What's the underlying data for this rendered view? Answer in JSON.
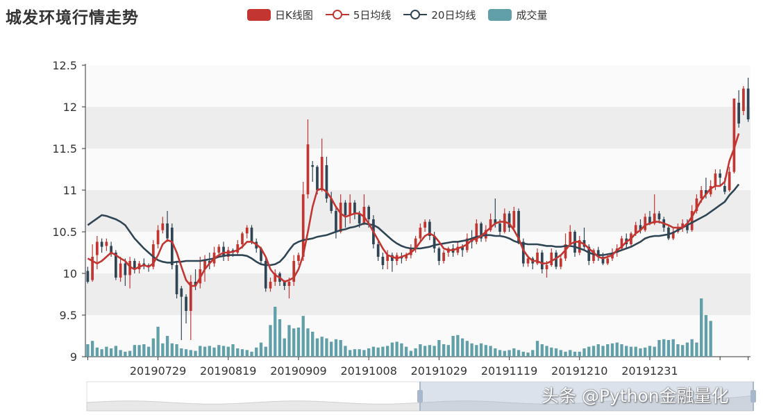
{
  "chart_data": {
    "type": "candlestick",
    "title": "城发环境行情走势",
    "legend": {
      "position": "top",
      "entries": [
        {
          "name": "日K线图",
          "color": "#c23531"
        },
        {
          "name": "5日均线",
          "color": "#c23531"
        },
        {
          "name": "20日均线",
          "color": "#2f4554"
        },
        {
          "name": "成交量",
          "color": "#61a0a8"
        }
      ]
    },
    "x_ticks": [
      "20190729",
      "20190819",
      "20190909",
      "20191008",
      "20191029",
      "20191119",
      "20191210",
      "20191231"
    ],
    "y_ticks": [
      "9",
      "9.5",
      "10",
      "10.5",
      "11",
      "11.5",
      "12",
      "12.5"
    ],
    "ylim": [
      9,
      12.5
    ],
    "split_area": true,
    "datazoom": {
      "start": 50,
      "end": 100
    },
    "candle_colors": {
      "up": "#c23531",
      "down": "#2f4554"
    },
    "ohlc": [
      [
        10.03,
        9.9,
        9.88,
        10.08
      ],
      [
        9.92,
        10.2,
        9.9,
        10.35
      ],
      [
        10.22,
        10.38,
        10.05,
        10.45
      ],
      [
        10.38,
        10.32,
        10.25,
        10.42
      ],
      [
        10.33,
        10.38,
        10.27,
        10.42
      ],
      [
        10.33,
        10.25,
        10.2,
        10.38
      ],
      [
        10.25,
        9.95,
        9.92,
        10.28
      ],
      [
        9.95,
        10.12,
        9.9,
        10.2
      ],
      [
        10.12,
        9.98,
        9.85,
        10.18
      ],
      [
        9.98,
        10.15,
        9.82,
        10.2
      ],
      [
        10.15,
        10.05,
        10.0,
        10.18
      ],
      [
        10.05,
        10.12,
        10.0,
        10.15
      ],
      [
        10.12,
        10.1,
        10.05,
        10.18
      ],
      [
        10.1,
        10.08,
        10.02,
        10.12
      ],
      [
        10.08,
        10.35,
        10.05,
        10.4
      ],
      [
        10.35,
        10.52,
        10.3,
        10.58
      ],
      [
        10.52,
        10.6,
        10.48,
        10.68
      ],
      [
        10.6,
        10.42,
        10.38,
        10.75
      ],
      [
        10.55,
        10.1,
        10.05,
        10.6
      ],
      [
        10.1,
        9.75,
        9.7,
        10.15
      ],
      [
        9.82,
        9.72,
        9.2,
        9.85
      ],
      [
        9.72,
        9.55,
        9.4,
        9.75
      ],
      [
        9.55,
        9.9,
        9.2,
        9.98
      ],
      [
        9.9,
        9.85,
        9.8,
        10.05
      ],
      [
        9.88,
        10.05,
        9.82,
        10.2
      ],
      [
        10.05,
        10.15,
        9.9,
        10.22
      ],
      [
        10.15,
        10.12,
        10.05,
        10.25
      ],
      [
        10.12,
        10.25,
        10.08,
        10.32
      ],
      [
        10.25,
        10.32,
        10.2,
        10.35
      ],
      [
        10.32,
        10.2,
        10.15,
        10.38
      ],
      [
        10.2,
        10.28,
        10.15,
        10.32
      ],
      [
        10.28,
        10.25,
        10.2,
        10.3
      ],
      [
        10.25,
        10.35,
        10.22,
        10.4
      ],
      [
        10.35,
        10.48,
        10.3,
        10.5
      ],
      [
        10.48,
        10.55,
        10.42,
        10.58
      ],
      [
        10.55,
        10.38,
        10.35,
        10.58
      ],
      [
        10.38,
        10.3,
        10.25,
        10.42
      ],
      [
        10.3,
        10.15,
        10.1,
        10.32
      ],
      [
        10.15,
        9.82,
        9.78,
        10.18
      ],
      [
        9.82,
        9.9,
        9.78,
        9.95
      ],
      [
        9.9,
        10.0,
        9.85,
        10.05
      ],
      [
        10.0,
        9.9,
        9.85,
        10.02
      ],
      [
        9.9,
        9.85,
        9.8,
        9.92
      ],
      [
        9.85,
        9.9,
        9.7,
        9.95
      ],
      [
        9.9,
        10.15,
        9.85,
        10.22
      ],
      [
        10.15,
        10.22,
        10.1,
        10.25
      ],
      [
        10.2,
        10.95,
        10.15,
        11.1
      ],
      [
        10.95,
        11.55,
        10.9,
        11.85
      ],
      [
        11.3,
        11.28,
        11.1,
        11.35
      ],
      [
        11.28,
        11.0,
        10.95,
        11.3
      ],
      [
        11.0,
        11.4,
        10.98,
        11.62
      ],
      [
        11.3,
        10.9,
        10.85,
        11.4
      ],
      [
        10.9,
        10.75,
        10.72,
        10.98
      ],
      [
        10.75,
        10.5,
        10.42,
        10.8
      ],
      [
        10.5,
        10.85,
        10.48,
        10.95
      ],
      [
        10.85,
        10.7,
        10.55,
        10.88
      ],
      [
        10.7,
        10.85,
        10.6,
        10.95
      ],
      [
        10.85,
        10.72,
        10.65,
        10.88
      ],
      [
        10.72,
        10.6,
        10.55,
        10.75
      ],
      [
        10.6,
        10.8,
        10.58,
        10.95
      ],
      [
        10.8,
        10.65,
        10.55,
        10.82
      ],
      [
        10.65,
        10.35,
        10.3,
        10.7
      ],
      [
        10.35,
        10.2,
        10.15,
        10.4
      ],
      [
        10.2,
        10.1,
        10.05,
        10.25
      ],
      [
        10.15,
        10.22,
        10.05,
        10.28
      ],
      [
        10.22,
        10.15,
        10.02,
        10.25
      ],
      [
        10.15,
        10.22,
        10.1,
        10.25
      ],
      [
        10.2,
        10.18,
        10.12,
        10.25
      ],
      [
        10.18,
        10.22,
        10.15,
        10.25
      ],
      [
        10.22,
        10.3,
        10.18,
        10.35
      ],
      [
        10.3,
        10.42,
        10.25,
        10.45
      ],
      [
        10.42,
        10.55,
        10.38,
        10.6
      ],
      [
        10.55,
        10.62,
        10.5,
        10.65
      ],
      [
        10.62,
        10.45,
        10.4,
        10.65
      ],
      [
        10.45,
        10.3,
        10.25,
        10.5
      ],
      [
        10.3,
        10.15,
        10.1,
        10.32
      ],
      [
        10.15,
        10.25,
        10.12,
        10.28
      ],
      [
        10.25,
        10.3,
        10.2,
        10.32
      ],
      [
        10.3,
        10.25,
        10.2,
        10.35
      ],
      [
        10.25,
        10.32,
        10.22,
        10.38
      ],
      [
        10.32,
        10.28,
        10.2,
        10.35
      ],
      [
        10.28,
        10.42,
        10.25,
        10.48
      ],
      [
        10.42,
        10.38,
        10.3,
        10.52
      ],
      [
        10.38,
        10.6,
        10.35,
        10.65
      ],
      [
        10.6,
        10.42,
        10.38,
        10.62
      ],
      [
        10.42,
        10.52,
        10.38,
        10.58
      ],
      [
        10.52,
        10.65,
        10.5,
        10.72
      ],
      [
        10.65,
        10.6,
        10.55,
        10.9
      ],
      [
        10.6,
        10.5,
        10.45,
        10.65
      ],
      [
        10.5,
        10.72,
        10.48,
        10.78
      ],
      [
        10.72,
        10.55,
        10.5,
        10.75
      ],
      [
        10.55,
        10.75,
        10.52,
        10.8
      ],
      [
        10.75,
        10.38,
        10.35,
        10.78
      ],
      [
        10.38,
        10.12,
        10.08,
        10.42
      ],
      [
        10.12,
        10.18,
        10.08,
        10.22
      ],
      [
        10.18,
        10.12,
        10.05,
        10.2
      ],
      [
        10.12,
        10.25,
        10.1,
        10.3
      ],
      [
        10.25,
        10.05,
        10.0,
        10.28
      ],
      [
        10.05,
        10.1,
        9.95,
        10.15
      ],
      [
        10.1,
        10.25,
        10.08,
        10.3
      ],
      [
        10.25,
        10.08,
        10.05,
        10.28
      ],
      [
        10.08,
        10.18,
        10.05,
        10.22
      ],
      [
        10.18,
        10.35,
        10.15,
        10.48
      ],
      [
        10.35,
        10.5,
        10.32,
        10.58
      ],
      [
        10.5,
        10.25,
        10.2,
        10.52
      ],
      [
        10.25,
        10.4,
        10.22,
        10.45
      ],
      [
        10.4,
        10.32,
        10.28,
        10.55
      ],
      [
        10.32,
        10.15,
        10.1,
        10.35
      ],
      [
        10.15,
        10.28,
        10.12,
        10.3
      ],
      [
        10.28,
        10.2,
        10.15,
        10.32
      ],
      [
        10.2,
        10.12,
        10.1,
        10.25
      ],
      [
        10.12,
        10.18,
        10.1,
        10.22
      ],
      [
        10.18,
        10.25,
        10.15,
        10.3
      ],
      [
        10.25,
        10.3,
        10.2,
        10.35
      ],
      [
        10.3,
        10.42,
        10.28,
        10.45
      ],
      [
        10.42,
        10.35,
        10.3,
        10.48
      ],
      [
        10.35,
        10.48,
        10.32,
        10.5
      ],
      [
        10.48,
        10.58,
        10.45,
        10.62
      ],
      [
        10.58,
        10.52,
        10.48,
        10.65
      ],
      [
        10.52,
        10.68,
        10.5,
        10.72
      ],
      [
        10.68,
        10.6,
        10.58,
        10.75
      ],
      [
        10.6,
        10.72,
        10.58,
        10.95
      ],
      [
        10.72,
        10.65,
        10.6,
        10.75
      ],
      [
        10.65,
        10.55,
        10.5,
        10.68
      ],
      [
        10.55,
        10.42,
        10.4,
        10.58
      ],
      [
        10.42,
        10.5,
        10.4,
        10.55
      ],
      [
        10.5,
        10.55,
        10.48,
        10.6
      ],
      [
        10.55,
        10.6,
        10.5,
        10.65
      ],
      [
        10.6,
        10.52,
        10.48,
        10.65
      ],
      [
        10.52,
        10.75,
        10.5,
        10.82
      ],
      [
        10.75,
        10.9,
        10.72,
        10.95
      ],
      [
        10.9,
        11.0,
        10.85,
        11.05
      ],
      [
        11.0,
        10.95,
        10.9,
        11.15
      ],
      [
        10.95,
        11.05,
        10.92,
        11.12
      ],
      [
        11.05,
        11.2,
        11.0,
        11.25
      ],
      [
        11.2,
        11.15,
        11.05,
        11.25
      ],
      [
        11.05,
        10.98,
        10.95,
        11.15
      ],
      [
        11.0,
        11.22,
        10.98,
        11.28
      ],
      [
        11.22,
        12.1,
        11.2,
        12.1
      ],
      [
        12.05,
        11.8,
        11.75,
        12.2
      ],
      [
        11.95,
        12.22,
        11.9,
        12.25
      ],
      [
        12.22,
        11.85,
        11.82,
        12.35
      ]
    ],
    "ma5": [
      10.18,
      10.15,
      10.12,
      10.15,
      10.2,
      10.25,
      10.22,
      10.18,
      10.15,
      10.08,
      10.05,
      10.08,
      10.1,
      10.08,
      10.12,
      10.22,
      10.35,
      10.4,
      10.38,
      10.25,
      10.08,
      9.92,
      9.85,
      9.85,
      9.95,
      10.05,
      10.12,
      10.18,
      10.22,
      10.25,
      10.25,
      10.26,
      10.28,
      10.32,
      10.38,
      10.38,
      10.35,
      10.3,
      10.2,
      10.05,
      9.98,
      9.95,
      9.9,
      9.92,
      9.95,
      10.05,
      10.22,
      10.5,
      10.8,
      11.0,
      11.02,
      10.98,
      10.9,
      10.8,
      10.72,
      10.68,
      10.7,
      10.72,
      10.72,
      10.68,
      10.6,
      10.5,
      10.4,
      10.3,
      10.22,
      10.2,
      10.18,
      10.2,
      10.22,
      10.25,
      10.3,
      10.38,
      10.45,
      10.48,
      10.45,
      10.38,
      10.3,
      10.28,
      10.28,
      10.3,
      10.32,
      10.35,
      10.4,
      10.42,
      10.45,
      10.5,
      10.55,
      10.6,
      10.62,
      10.62,
      10.6,
      10.52,
      10.42,
      10.28,
      10.2,
      10.15,
      10.15,
      10.12,
      10.12,
      10.15,
      10.18,
      10.22,
      10.28,
      10.35,
      10.38,
      10.38,
      10.35,
      10.3,
      10.25,
      10.2,
      10.18,
      10.2,
      10.22,
      10.28,
      10.32,
      10.38,
      10.42,
      10.48,
      10.52,
      10.58,
      10.6,
      10.62,
      10.62,
      10.6,
      10.58,
      10.55,
      10.55,
      10.55,
      10.6,
      10.68,
      10.78,
      10.88,
      10.95,
      11.02,
      11.05,
      11.05,
      11.1,
      11.35,
      11.5,
      11.68
    ],
    "ma20": [
      10.58,
      10.62,
      10.66,
      10.7,
      10.69,
      10.67,
      10.65,
      10.62,
      10.58,
      10.5,
      10.42,
      10.36,
      10.3,
      10.25,
      10.2,
      10.16,
      10.14,
      10.13,
      10.13,
      10.14,
      10.14,
      10.15,
      10.15,
      10.15,
      10.15,
      10.16,
      10.17,
      10.18,
      10.2,
      10.21,
      10.22,
      10.22,
      10.22,
      10.22,
      10.21,
      10.18,
      10.14,
      10.11,
      10.1,
      10.1,
      10.11,
      10.14,
      10.2,
      10.28,
      10.35,
      10.38,
      10.4,
      10.41,
      10.42,
      10.44,
      10.45,
      10.46,
      10.48,
      10.5,
      10.52,
      10.53,
      10.55,
      10.56,
      10.58,
      10.6,
      10.59,
      10.58,
      10.55,
      10.5,
      10.45,
      10.4,
      10.36,
      10.33,
      10.31,
      10.3,
      10.3,
      10.3,
      10.31,
      10.32,
      10.34,
      10.35,
      10.36,
      10.37,
      10.38,
      10.38,
      10.39,
      10.4,
      10.42,
      10.44,
      10.45,
      10.46,
      10.46,
      10.45,
      10.45,
      10.44,
      10.42,
      10.39,
      10.37,
      10.36,
      10.35,
      10.35,
      10.35,
      10.34,
      10.33,
      10.33,
      10.32,
      10.32,
      10.33,
      10.33,
      10.32,
      10.3,
      10.28,
      10.25,
      10.23,
      10.22,
      10.22,
      10.23,
      10.24,
      10.26,
      10.28,
      10.3,
      10.32,
      10.35,
      10.38,
      10.42,
      10.44,
      10.45,
      10.45,
      10.46,
      10.47,
      10.49,
      10.52,
      10.55,
      10.58,
      10.61,
      10.64,
      10.67,
      10.7,
      10.74,
      10.78,
      10.82,
      10.86,
      10.94,
      11.0,
      11.07
    ],
    "volume": [
      9.15,
      9.19,
      9.11,
      9.09,
      9.12,
      9.1,
      9.13,
      9.08,
      9.06,
      9.07,
      9.14,
      9.14,
      9.15,
      9.12,
      9.22,
      9.36,
      9.16,
      9.25,
      9.16,
      9.15,
      9.1,
      9.09,
      9.08,
      9.07,
      9.13,
      9.12,
      9.13,
      9.11,
      9.14,
      9.13,
      9.12,
      9.15,
      9.1,
      9.09,
      9.08,
      9.06,
      9.11,
      9.17,
      9.12,
      9.38,
      9.6,
      9.45,
      9.22,
      9.38,
      9.34,
      9.35,
      9.49,
      9.34,
      9.3,
      9.22,
      9.24,
      9.22,
      9.18,
      9.21,
      9.2,
      9.13,
      9.08,
      9.09,
      9.09,
      9.08,
      9.1,
      9.12,
      9.11,
      9.12,
      9.13,
      9.17,
      9.18,
      9.16,
      9.12,
      9.07,
      9.1,
      9.15,
      9.13,
      9.14,
      9.13,
      9.2,
      9.15,
      9.14,
      9.25,
      9.26,
      9.22,
      9.19,
      9.16,
      9.14,
      9.16,
      9.14,
      9.13,
      9.1,
      9.08,
      9.07,
      9.08,
      9.1,
      9.08,
      9.06,
      9.05,
      9.08,
      9.19,
      9.15,
      9.13,
      9.11,
      9.1,
      9.08,
      9.06,
      9.08,
      9.06,
      9.06,
      9.1,
      9.12,
      9.13,
      9.15,
      9.13,
      9.15,
      9.16,
      9.17,
      9.15,
      9.13,
      9.12,
      9.12,
      9.1,
      9.11,
      9.13,
      9.12,
      9.2,
      9.21,
      9.2,
      9.21,
      9.15,
      9.14,
      9.17,
      9.21,
      9.17,
      9.7,
      9.5,
      9.43
    ]
  },
  "watermark": "头条 @Python金融量化"
}
